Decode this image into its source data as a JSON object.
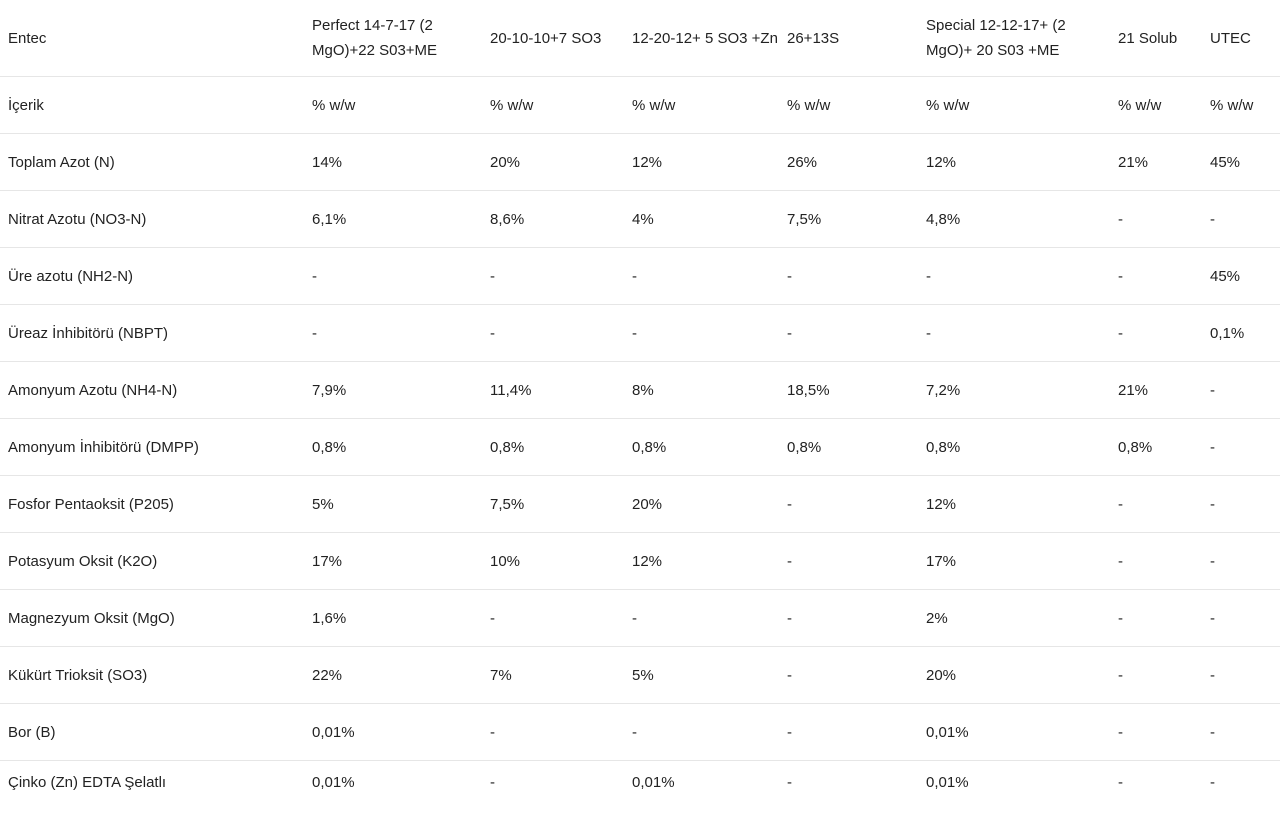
{
  "table": {
    "headers": [
      "Entec",
      "Perfect 14-7-17 (2 MgO)+22 S03+ME",
      "20-10-10+7 SO3",
      "12-20-12+ 5 SO3 +Zn",
      "26+13S",
      "Special 12-12-17+ (2 MgO)+ 20 S03 +ME",
      "21 Solub",
      "UTEC"
    ],
    "rows": [
      [
        "İçerik",
        "% w/w",
        "% w/w",
        "% w/w",
        "% w/w",
        "% w/w",
        "% w/w",
        "% w/w"
      ],
      [
        "Toplam Azot (N)",
        "14%",
        "20%",
        "12%",
        "26%",
        "12%",
        "21%",
        "45%"
      ],
      [
        "Nitrat Azotu (NO3-N)",
        "6,1%",
        "8,6%",
        "4%",
        "7,5%",
        "4,8%",
        "-",
        "-"
      ],
      [
        "Üre azotu (NH2-N)",
        "-",
        "-",
        "-",
        "-",
        "-",
        "-",
        "45%"
      ],
      [
        "Üreaz İnhibitörü (NBPT)",
        "-",
        "-",
        "-",
        "-",
        "-",
        "-",
        "0,1%"
      ],
      [
        "Amonyum Azotu (NH4-N)",
        "7,9%",
        "11,4%",
        "8%",
        "18,5%",
        "7,2%",
        "21%",
        "-"
      ],
      [
        "Amonyum İnhibitörü (DMPP)",
        "0,8%",
        "0,8%",
        "0,8%",
        "0,8%",
        "0,8%",
        "0,8%",
        "-"
      ],
      [
        "Fosfor Pentaoksit (P205)",
        "5%",
        "7,5%",
        "20%",
        "-",
        "12%",
        "-",
        "-"
      ],
      [
        "Potasyum Oksit (K2O)",
        "17%",
        "10%",
        "12%",
        "-",
        "17%",
        "-",
        "-"
      ],
      [
        "Magnezyum Oksit (MgO)",
        "1,6%",
        "-",
        "-",
        "-",
        "2%",
        "-",
        "-"
      ],
      [
        "Kükürt Trioksit (SO3)",
        "22%",
        "7%",
        "5%",
        "-",
        "20%",
        "-",
        "-"
      ],
      [
        "Bor (B)",
        "0,01%",
        "-",
        "-",
        "-",
        "0,01%",
        "-",
        "-"
      ],
      [
        "Çinko (Zn) EDTA Şelatlı",
        "0,01%",
        "-",
        "0,01%",
        "-",
        "0,01%",
        "-",
        "-"
      ]
    ]
  }
}
